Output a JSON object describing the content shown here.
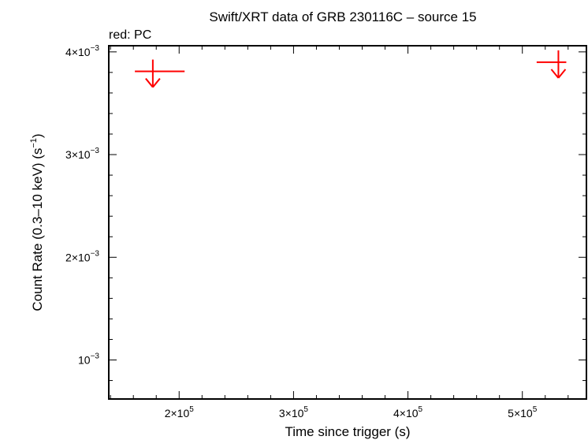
{
  "chart_data": {
    "type": "scatter",
    "title": "Swift/XRT data of GRB 230116C – source 15",
    "subtitle": "red: PC",
    "xlabel": "Time since trigger (s)",
    "ylabel": "Count Rate (0.3–10 keV) (s",
    "ylabel_sup": "−1",
    "ylabel_close": ")",
    "xlim": [
      138500,
      556000
    ],
    "ylim": [
      0.00062,
      0.00406
    ],
    "x_ticks": [
      {
        "value": 200000,
        "mant": "2×10",
        "exp": "5"
      },
      {
        "value": 300000,
        "mant": "3×10",
        "exp": "5"
      },
      {
        "value": 400000,
        "mant": "4×10",
        "exp": "5"
      },
      {
        "value": 500000,
        "mant": "5×10",
        "exp": "5"
      }
    ],
    "y_ticks": [
      {
        "value": 0.001,
        "mant": "10",
        "exp": "−3"
      },
      {
        "value": 0.002,
        "mant": "2×10",
        "exp": "−3"
      },
      {
        "value": 0.003,
        "mant": "3×10",
        "exp": "−3"
      },
      {
        "value": 0.004,
        "mant": "4×10",
        "exp": "−3"
      }
    ],
    "series": [
      {
        "color": "#ff0000",
        "marker": "upper-limit",
        "points": [
          {
            "x": 177000,
            "xerr_lo": 15700,
            "xerr_hi": 27800,
            "y": 0.00381
          },
          {
            "x": 531500,
            "xerr_lo": 19000,
            "xerr_hi": 6900,
            "y": 0.0039
          }
        ]
      }
    ]
  }
}
